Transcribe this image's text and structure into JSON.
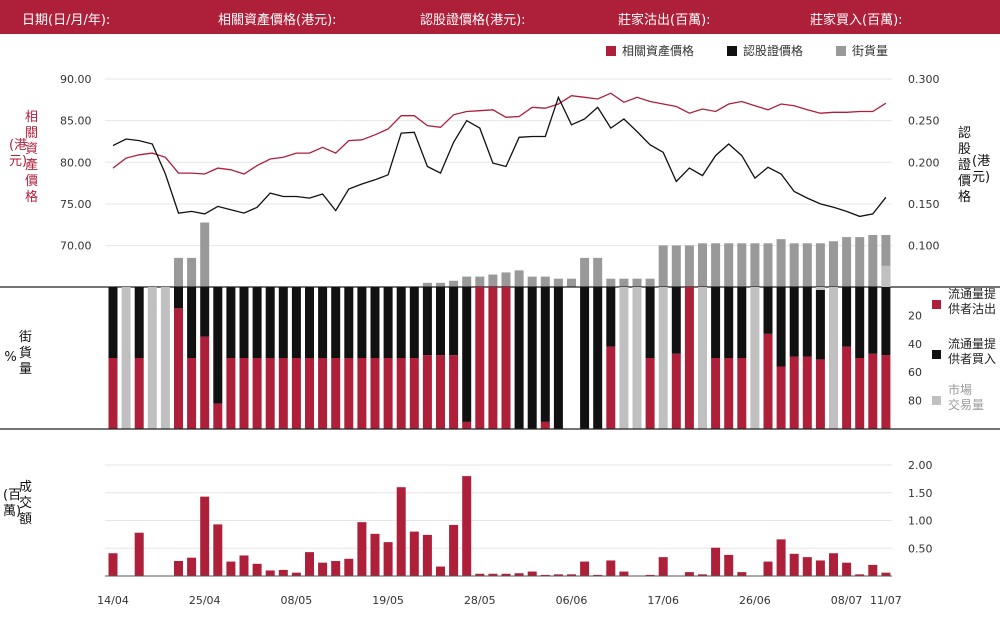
{
  "header": {
    "date_label": "日期(日/月/年):",
    "underlying_label": "相關資產價格(港元):",
    "warrant_label": "認股證價格(港元):",
    "mm_sell_label": "莊家沽出(百萬):",
    "mm_buy_label": "莊家買入(百萬):"
  },
  "colors": {
    "brand": "#ae1f3a",
    "crimson": "#ae1f3a",
    "black": "#111111",
    "gray": "#999999",
    "lightgray": "#c0c0c0"
  },
  "chart_data": [
    {
      "type": "line",
      "title": "",
      "ylabel_left": "相關資產價格",
      "ylabel_left_unit": "(港元)",
      "ylabel_right": "認股證價格",
      "ylabel_right_unit": "(港元)",
      "y_left_ticks": [
        "90.00",
        "85.00",
        "80.00",
        "75.00",
        "70.00"
      ],
      "y_right_ticks": [
        "0.300",
        "0.250",
        "0.200",
        "0.150",
        "0.100"
      ],
      "ylim_left": [
        67,
        92
      ],
      "ylim_right": [
        0.07,
        0.32
      ],
      "legend": [
        "相關資產價格",
        "認股證價格",
        "街貨量"
      ],
      "series": [
        {
          "name": "相關資產價格",
          "axis": "left",
          "values": [
            79.3,
            80.5,
            80.9,
            81.1,
            80.6,
            78.7,
            78.7,
            78.6,
            79.3,
            79.1,
            78.6,
            79.6,
            80.4,
            80.6,
            81.1,
            81.1,
            81.8,
            81.1,
            82.6,
            82.7,
            83.3,
            84.0,
            85.6,
            85.6,
            84.4,
            84.2,
            85.7,
            86.1,
            86.2,
            86.3,
            85.4,
            85.5,
            86.6,
            86.5,
            87.0,
            88.0,
            87.8,
            87.6,
            88.3,
            87.2,
            87.8,
            87.3,
            87.0,
            86.7,
            85.9,
            86.4,
            86.1,
            87.0,
            87.3,
            86.8,
            86.3,
            87.0,
            86.8,
            86.3,
            85.9,
            86.0,
            86.0,
            86.1,
            86.1,
            87.1
          ]
        },
        {
          "name": "認股證價格",
          "axis": "right",
          "values": [
            0.22,
            0.228,
            0.226,
            0.222,
            0.186,
            0.139,
            0.141,
            0.138,
            0.147,
            0.143,
            0.139,
            0.146,
            0.163,
            0.159,
            0.159,
            0.157,
            0.162,
            0.142,
            0.168,
            0.174,
            0.179,
            0.185,
            0.235,
            0.236,
            0.195,
            0.187,
            0.224,
            0.25,
            0.241,
            0.199,
            0.195,
            0.23,
            0.231,
            0.231,
            0.278,
            0.245,
            0.252,
            0.266,
            0.241,
            0.252,
            0.237,
            0.221,
            0.212,
            0.177,
            0.193,
            0.184,
            0.208,
            0.222,
            0.208,
            0.181,
            0.194,
            0.186,
            0.165,
            0.157,
            0.15,
            0.146,
            0.141,
            0.135,
            0.138,
            0.158
          ]
        },
        {
          "name": "街貨量",
          "axis": "percent",
          "type": "bar",
          "values": [
            0,
            0,
            0,
            0,
            0,
            14,
            14,
            31,
            0,
            0,
            0,
            0,
            0,
            0,
            0,
            0,
            0,
            0,
            0,
            0,
            0,
            0,
            0,
            0,
            2,
            2,
            3,
            5,
            5,
            6,
            7,
            8,
            5,
            5,
            4,
            4,
            14,
            14,
            4,
            4,
            4,
            4,
            20,
            20,
            20,
            21,
            21,
            21,
            21,
            21,
            21,
            23,
            21,
            21,
            21,
            22,
            24,
            24,
            25,
            25
          ]
        }
      ]
    },
    {
      "type": "bar",
      "title": "",
      "ylabel": "%",
      "ylabel_left": "街貨量",
      "y_ticks": [
        "80",
        "60",
        "40",
        "20"
      ],
      "ylim": [
        0,
        100
      ],
      "legend": [
        "流通量提供者沽出",
        "流通量提供者買入",
        "市場交易量"
      ],
      "series": [
        {
          "name": "流通量提供者沽出",
          "values": [
            50,
            0,
            50,
            0,
            0,
            85,
            50,
            65,
            18,
            50,
            50,
            50,
            50,
            50,
            50,
            50,
            50,
            50,
            50,
            50,
            50,
            50,
            50,
            50,
            52,
            52,
            52,
            5,
            100,
            100,
            100,
            0,
            0,
            5,
            0,
            0,
            0,
            0,
            58,
            0,
            0,
            50,
            0,
            53,
            100,
            0,
            50,
            50,
            50,
            0,
            67,
            44,
            51,
            51,
            49,
            0,
            58,
            50,
            53,
            52
          ]
        },
        {
          "name": "流通量提供者買入",
          "values": [
            50,
            0,
            50,
            0,
            0,
            15,
            50,
            35,
            82,
            50,
            50,
            50,
            50,
            50,
            50,
            50,
            50,
            50,
            50,
            50,
            50,
            50,
            50,
            50,
            48,
            48,
            48,
            95,
            0,
            0,
            0,
            100,
            100,
            95,
            100,
            0,
            100,
            100,
            42,
            0,
            0,
            50,
            0,
            47,
            0,
            0,
            50,
            50,
            50,
            0,
            33,
            56,
            49,
            49,
            49,
            0,
            42,
            50,
            47,
            48
          ]
        },
        {
          "name": "市場交易量",
          "values": [
            0,
            100,
            0,
            100,
            100,
            0,
            0,
            0,
            0,
            0,
            0,
            0,
            0,
            0,
            0,
            0,
            0,
            0,
            0,
            0,
            0,
            0,
            0,
            0,
            0,
            0,
            0,
            0,
            0,
            0,
            0,
            0,
            0,
            0,
            0,
            0,
            0,
            0,
            0,
            100,
            100,
            0,
            100,
            0,
            0,
            100,
            0,
            0,
            0,
            100,
            0,
            0,
            0,
            0,
            2,
            100,
            0,
            0,
            0,
            15
          ]
        }
      ]
    },
    {
      "type": "bar",
      "title": "",
      "ylabel": "成交額",
      "ylabel_unit": "(百萬)",
      "y_ticks": [
        "2.00",
        "1.50",
        "1.00",
        "0.50"
      ],
      "ylim": [
        0,
        2.2
      ],
      "categories_ticks": [
        "14/04",
        "25/04",
        "08/05",
        "19/05",
        "28/05",
        "06/06",
        "17/06",
        "26/06",
        "08/07",
        "11/07"
      ],
      "series": [
        {
          "name": "成交額",
          "values": [
            0.41,
            0,
            0.78,
            0,
            0,
            0.27,
            0.33,
            1.43,
            0.93,
            0.26,
            0.37,
            0.22,
            0.1,
            0.11,
            0.06,
            0.43,
            0.24,
            0.27,
            0.31,
            0.97,
            0.76,
            0.61,
            1.6,
            0.8,
            0.74,
            0.17,
            0.92,
            1.8,
            0.04,
            0.04,
            0.04,
            0.05,
            0.08,
            0.02,
            0.03,
            0.03,
            0.26,
            0.02,
            0.28,
            0.08,
            0,
            0.02,
            0.34,
            0,
            0.07,
            0.03,
            0.51,
            0.38,
            0.07,
            0,
            0.26,
            0.66,
            0.4,
            0.34,
            0.28,
            0.41,
            0.24,
            0.03,
            0.2,
            0.06
          ]
        }
      ]
    }
  ]
}
